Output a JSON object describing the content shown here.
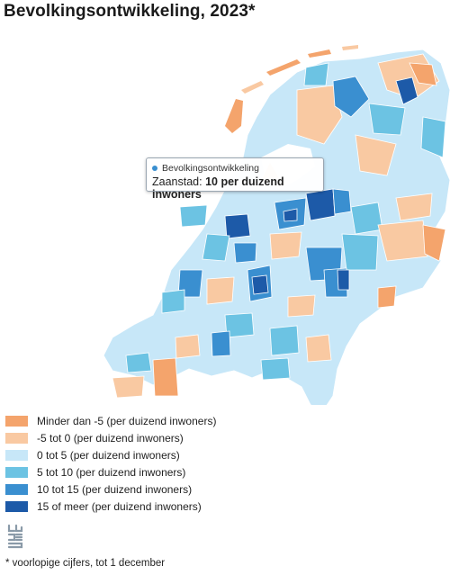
{
  "title": "Bevolkingsontwikkeling, 2023*",
  "tooltip": {
    "series": "Bevolkingsontwikkeling",
    "place": "Zaanstad:",
    "value": "10 per duizend inwoners"
  },
  "legend": [
    {
      "label": "Minder dan -5 (per duizend inwoners)",
      "color": "#f4a46c"
    },
    {
      "label": "-5 tot 0 (per duizend inwoners)",
      "color": "#f9c9a2"
    },
    {
      "label": "0 tot 5 (per duizend inwoners)",
      "color": "#c7e7f8"
    },
    {
      "label": "5 tot 10 (per duizend inwoners)",
      "color": "#6cc3e3"
    },
    {
      "label": "10 tot 15 (per duizend inwoners)",
      "color": "#3a8fd0"
    },
    {
      "label": "15 of meer (per duizend inwoners)",
      "color": "#1d5aa8"
    }
  ],
  "footnote": "* voorlopige cijfers, tot 1 december",
  "icons": {
    "logo": "cbs-logo-icon"
  }
}
